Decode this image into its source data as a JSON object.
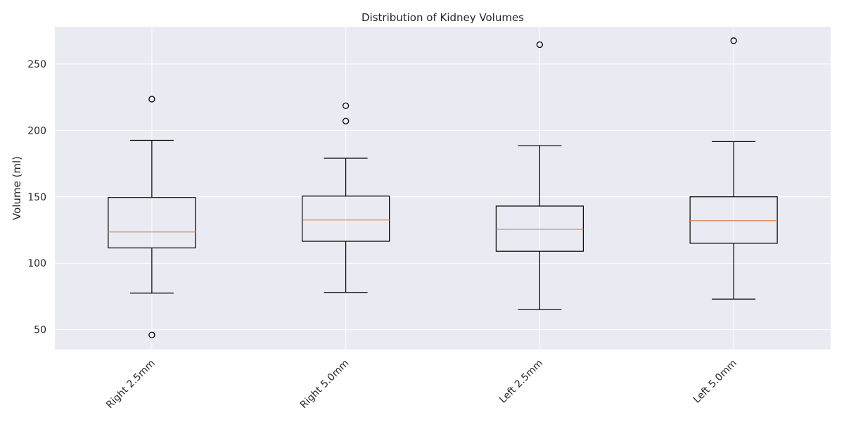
{
  "chart_data": {
    "type": "box",
    "title": "Distribution of Kidney Volumes",
    "xlabel": "",
    "ylabel": "Volume (ml)",
    "ylim": [
      35,
      278
    ],
    "yticks": [
      50,
      100,
      150,
      200,
      250
    ],
    "grid": true,
    "categories": [
      "Right 2.5mm",
      "Right 5.0mm",
      "Left 2.5mm",
      "Left 5.0mm"
    ],
    "boxes": [
      {
        "whisker_low": 77.5,
        "q1": 111.5,
        "median": 123.5,
        "q3": 149.5,
        "whisker_high": 192.5,
        "outliers": [
          46,
          223.5
        ]
      },
      {
        "whisker_low": 78,
        "q1": 116.5,
        "median": 132.5,
        "q3": 150.5,
        "whisker_high": 179,
        "outliers": [
          207,
          218.5
        ]
      },
      {
        "whisker_low": 65,
        "q1": 109,
        "median": 125.5,
        "q3": 143,
        "whisker_high": 188.5,
        "outliers": [
          264.5
        ]
      },
      {
        "whisker_low": 73,
        "q1": 115,
        "median": 132,
        "q3": 150,
        "whisker_high": 191.5,
        "outliers": [
          267.5
        ]
      }
    ],
    "colors": {
      "plot_background": "#eaeaf2",
      "grid": "#ffffff",
      "box_line": "#000000",
      "median_line": "#dd8452"
    }
  }
}
